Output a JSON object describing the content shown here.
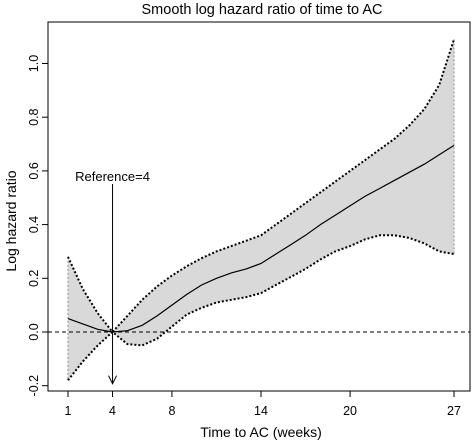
{
  "chart_data": {
    "type": "line",
    "title": "Smooth log hazard ratio of time to AC",
    "xlabel": "Time to AC (weeks)",
    "ylabel": "Log hazard ratio",
    "xlim": [
      1,
      27
    ],
    "ylim": [
      -0.2,
      1.1
    ],
    "x_ticks": [
      1,
      4,
      8,
      14,
      20,
      27
    ],
    "x_tick_labels": [
      "1",
      "4",
      "8",
      "14",
      "20",
      "27"
    ],
    "y_ticks": [
      -0.2,
      0.0,
      0.2,
      0.4,
      0.6,
      0.8,
      1.0
    ],
    "y_tick_labels": [
      "-0.2",
      "0.0",
      "0.2",
      "0.4",
      "0.6",
      "0.8",
      "1.0"
    ],
    "reference_line_y": 0,
    "annotation": {
      "text": "Reference=4",
      "x": 4,
      "arrow_to_y": -0.2
    },
    "band_color": "#d9d9d9",
    "line_color": "#000000",
    "series": [
      {
        "x": [
          1,
          2,
          3,
          4,
          5,
          6,
          7,
          8,
          9,
          10,
          11,
          12,
          13,
          14,
          15,
          16,
          17,
          18,
          19,
          20,
          21,
          22,
          23,
          24,
          25,
          26,
          27
        ],
        "estimate": [
          0.05,
          0.03,
          0.01,
          0.0,
          0.005,
          0.025,
          0.06,
          0.1,
          0.14,
          0.175,
          0.2,
          0.22,
          0.235,
          0.255,
          0.29,
          0.325,
          0.36,
          0.4,
          0.435,
          0.47,
          0.505,
          0.535,
          0.565,
          0.595,
          0.625,
          0.66,
          0.695
        ],
        "upper": [
          0.28,
          0.16,
          0.07,
          0.0,
          0.06,
          0.12,
          0.17,
          0.21,
          0.245,
          0.275,
          0.3,
          0.32,
          0.34,
          0.36,
          0.4,
          0.44,
          0.48,
          0.52,
          0.56,
          0.6,
          0.64,
          0.68,
          0.72,
          0.77,
          0.83,
          0.92,
          1.09
        ],
        "lower": [
          -0.18,
          -0.11,
          -0.05,
          0.0,
          -0.045,
          -0.05,
          -0.025,
          0.02,
          0.065,
          0.09,
          0.11,
          0.12,
          0.13,
          0.145,
          0.175,
          0.205,
          0.235,
          0.27,
          0.3,
          0.32,
          0.345,
          0.36,
          0.36,
          0.35,
          0.33,
          0.3,
          0.29
        ]
      }
    ]
  }
}
